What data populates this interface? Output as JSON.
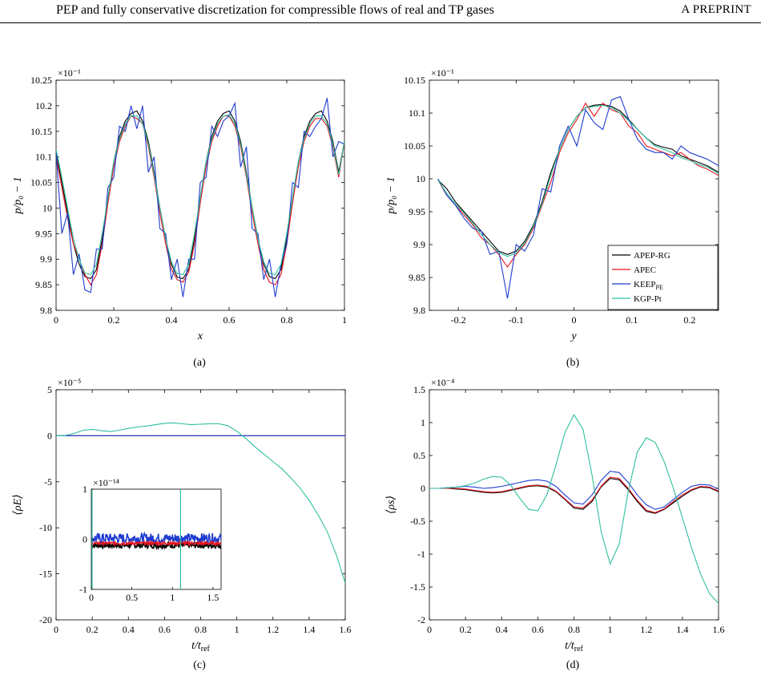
{
  "header": {
    "title": "PEP and fully conservative discretization for compressible flows of real and TP gases",
    "label": "A PREPRINT"
  },
  "legend": {
    "entries": [
      {
        "name": "APEP-RG",
        "color": "#000000"
      },
      {
        "name": "APEC",
        "color": "#e8141e"
      },
      {
        "name": "KEEP",
        "sub": "PE",
        "color": "#1f3bd0"
      },
      {
        "name": "KGP-Pt",
        "color": "#2ebfa0"
      }
    ]
  },
  "chart_data": [
    {
      "id": "a",
      "type": "line",
      "caption": "(a)",
      "xlabel": "x",
      "ylabel": "p/p₀ − 1",
      "xlim": [
        0,
        1
      ],
      "ylim": [
        9.8,
        10.25
      ],
      "exponent": "×10⁻¹",
      "xticks": [
        "0",
        "0.2",
        "0.4",
        "0.6",
        "0.8",
        "1"
      ],
      "yticks": [
        "9.8",
        "9.85",
        "9.9",
        "9.95",
        "10",
        "10.05",
        "10.1",
        "10.15",
        "10.2",
        "10.25"
      ],
      "x": [
        0,
        0.02,
        0.04,
        0.06,
        0.08,
        0.1,
        0.12,
        0.14,
        0.16,
        0.18,
        0.2,
        0.22,
        0.24,
        0.26,
        0.28,
        0.3,
        0.32,
        0.34,
        0.36,
        0.38,
        0.4,
        0.42,
        0.44,
        0.46,
        0.48,
        0.5,
        0.52,
        0.54,
        0.56,
        0.58,
        0.6,
        0.62,
        0.64,
        0.66,
        0.68,
        0.7,
        0.72,
        0.74,
        0.76,
        0.78,
        0.8,
        0.82,
        0.84,
        0.86,
        0.88,
        0.9,
        0.92,
        0.94,
        0.96,
        0.98,
        1.0
      ],
      "series": [
        {
          "name": "APEP-RG",
          "color": "#000000",
          "values": [
            10.11,
            10.05,
            9.99,
            9.93,
            9.89,
            9.866,
            9.862,
            9.88,
            9.94,
            10.02,
            10.09,
            10.14,
            10.17,
            10.185,
            10.19,
            10.17,
            10.13,
            10.07,
            10.0,
            9.94,
            9.89,
            9.865,
            9.862,
            9.88,
            9.94,
            10.02,
            10.09,
            10.14,
            10.17,
            10.185,
            10.19,
            10.17,
            10.13,
            10.07,
            10.0,
            9.94,
            9.89,
            9.866,
            9.862,
            9.88,
            9.94,
            10.02,
            10.09,
            10.14,
            10.17,
            10.185,
            10.19,
            10.17,
            10.13,
            10.07,
            10.13
          ]
        },
        {
          "name": "APEC",
          "color": "#e8141e",
          "values": [
            10.1,
            10.04,
            9.98,
            9.93,
            9.9,
            9.87,
            9.85,
            9.87,
            9.93,
            10.01,
            10.08,
            10.13,
            10.16,
            10.18,
            10.175,
            10.165,
            10.12,
            10.06,
            9.99,
            9.93,
            9.88,
            9.86,
            9.855,
            9.875,
            9.93,
            10.01,
            10.08,
            10.13,
            10.16,
            10.18,
            10.18,
            10.16,
            10.12,
            10.06,
            9.99,
            9.93,
            9.88,
            9.855,
            9.85,
            9.87,
            9.93,
            10.01,
            10.08,
            10.13,
            10.16,
            10.175,
            10.175,
            10.16,
            10.12,
            10.06,
            10.13
          ]
        },
        {
          "name": "KEEP_PE",
          "color": "#1f3bd0",
          "values": [
            10.11,
            9.95,
            9.99,
            9.87,
            9.91,
            9.84,
            9.835,
            9.92,
            9.92,
            10.04,
            10.06,
            10.16,
            10.15,
            10.2,
            10.155,
            10.2,
            10.07,
            10.1,
            9.96,
            9.95,
            9.86,
            9.9,
            9.826,
            9.9,
            9.9,
            10.05,
            10.06,
            10.16,
            10.14,
            10.17,
            10.18,
            10.205,
            10.08,
            10.12,
            9.96,
            9.95,
            9.86,
            9.9,
            9.826,
            9.89,
            9.93,
            10.05,
            10.04,
            10.15,
            10.14,
            10.16,
            10.175,
            10.215,
            10.1,
            10.13,
            10.125
          ]
        },
        {
          "name": "KGP-Pt",
          "color": "#2ebfa0",
          "values": [
            10.115,
            10.06,
            10.0,
            9.94,
            9.9,
            9.873,
            9.87,
            9.89,
            9.95,
            10.02,
            10.09,
            10.135,
            10.165,
            10.18,
            10.18,
            10.165,
            10.125,
            10.065,
            10.0,
            9.94,
            9.895,
            9.872,
            9.87,
            9.89,
            9.95,
            10.02,
            10.09,
            10.135,
            10.165,
            10.18,
            10.182,
            10.165,
            10.125,
            10.065,
            10.0,
            9.94,
            9.895,
            9.872,
            9.87,
            9.89,
            9.95,
            10.02,
            10.09,
            10.135,
            10.165,
            10.18,
            10.18,
            10.165,
            10.125,
            10.065,
            10.13
          ]
        }
      ]
    },
    {
      "id": "b",
      "type": "line",
      "caption": "(b)",
      "xlabel": "y",
      "ylabel": "p/p₀ − 1",
      "xlim": [
        -0.25,
        0.25
      ],
      "ylim": [
        9.8,
        10.15
      ],
      "exponent": "×10⁻¹",
      "xticks": [
        "-0.2",
        "-0.1",
        "0",
        "0.1",
        "0.2"
      ],
      "xtick_values": [
        -0.2,
        -0.1,
        0,
        0.1,
        0.2
      ],
      "yticks": [
        "9.8",
        "9.85",
        "9.9",
        "9.95",
        "10",
        "10.05",
        "10.1",
        "10.15"
      ],
      "x": [
        -0.235,
        -0.22,
        -0.205,
        -0.19,
        -0.175,
        -0.16,
        -0.145,
        -0.13,
        -0.115,
        -0.1,
        -0.085,
        -0.07,
        -0.055,
        -0.04,
        -0.025,
        -0.01,
        0.005,
        0.02,
        0.035,
        0.05,
        0.065,
        0.08,
        0.095,
        0.11,
        0.125,
        0.14,
        0.155,
        0.17,
        0.185,
        0.2,
        0.215,
        0.23,
        0.25
      ],
      "series": [
        {
          "name": "APEP-RG",
          "color": "#000000",
          "values": [
            9.998,
            9.985,
            9.965,
            9.95,
            9.935,
            9.92,
            9.905,
            9.89,
            9.885,
            9.89,
            9.905,
            9.93,
            9.965,
            10.01,
            10.045,
            10.075,
            10.095,
            10.108,
            10.112,
            10.113,
            10.11,
            10.103,
            10.09,
            10.075,
            10.062,
            10.052,
            10.048,
            10.045,
            10.035,
            10.03,
            10.025,
            10.02,
            10.01
          ]
        },
        {
          "name": "APEC",
          "color": "#e8141e",
          "values": [
            9.998,
            9.975,
            9.96,
            9.945,
            9.93,
            9.91,
            9.9,
            9.885,
            9.866,
            9.885,
            9.9,
            9.925,
            9.96,
            9.995,
            10.04,
            10.07,
            10.09,
            10.115,
            10.095,
            10.115,
            10.105,
            10.1,
            10.08,
            10.07,
            10.05,
            10.045,
            10.04,
            10.035,
            10.04,
            10.03,
            10.02,
            10.015,
            10.005
          ]
        },
        {
          "name": "KEEP_PE",
          "color": "#1f3bd0",
          "values": [
            10.0,
            9.975,
            9.96,
            9.94,
            9.925,
            9.92,
            9.885,
            9.89,
            9.818,
            9.9,
            9.89,
            9.915,
            9.985,
            9.98,
            10.05,
            10.08,
            10.05,
            10.105,
            10.085,
            10.075,
            10.12,
            10.125,
            10.09,
            10.06,
            10.045,
            10.04,
            10.04,
            10.03,
            10.05,
            10.04,
            10.035,
            10.03,
            10.02
          ]
        },
        {
          "name": "KGP-Pt",
          "color": "#2ebfa0",
          "values": [
            9.998,
            9.978,
            9.962,
            9.948,
            9.932,
            9.915,
            9.9,
            9.888,
            9.882,
            9.887,
            9.902,
            9.928,
            9.962,
            10.005,
            10.045,
            10.075,
            10.095,
            10.108,
            10.11,
            10.112,
            10.108,
            10.1,
            10.088,
            10.075,
            10.062,
            10.05,
            10.045,
            10.04,
            10.032,
            10.028,
            10.022,
            10.018,
            10.008
          ]
        }
      ]
    },
    {
      "id": "c",
      "type": "line",
      "caption": "(c)",
      "xlabel": "t/t_ref",
      "ylabel": "⟨ρE⟩",
      "xlim": [
        0,
        1.6
      ],
      "ylim": [
        -20,
        5
      ],
      "exponent": "×10⁻⁵",
      "xticks": [
        "0",
        "0.2",
        "0.4",
        "0.6",
        "0.8",
        "1",
        "1.2",
        "1.4",
        "1.6"
      ],
      "yticks": [
        "-20",
        "-15",
        "-10",
        "-5",
        "0",
        "5"
      ],
      "x": [
        0,
        0.05,
        0.1,
        0.15,
        0.2,
        0.25,
        0.3,
        0.35,
        0.4,
        0.45,
        0.5,
        0.55,
        0.6,
        0.65,
        0.7,
        0.75,
        0.8,
        0.85,
        0.9,
        0.95,
        1.0,
        1.05,
        1.1,
        1.15,
        1.2,
        1.25,
        1.3,
        1.35,
        1.4,
        1.45,
        1.5,
        1.55,
        1.6
      ],
      "series": [
        {
          "name": "APEP-RG",
          "color": "#000000",
          "values": [
            0,
            0,
            0,
            0,
            0,
            0,
            0,
            0,
            0,
            0,
            0,
            0,
            0,
            0,
            0,
            0,
            0,
            0,
            0,
            0,
            0,
            0,
            0,
            0,
            0,
            0,
            0,
            0,
            0,
            0,
            0,
            0,
            0
          ]
        },
        {
          "name": "APEC",
          "color": "#e8141e",
          "values": [
            0,
            0,
            0,
            0,
            0,
            0,
            0,
            0,
            0,
            0,
            0,
            0,
            0,
            0,
            0,
            0,
            0,
            0,
            0,
            0,
            0,
            0,
            0,
            0,
            0,
            0,
            0,
            0,
            0,
            0,
            0,
            0,
            0
          ]
        },
        {
          "name": "KEEP_PE",
          "color": "#1f3bd0",
          "values": [
            0,
            0,
            0,
            0,
            0,
            0,
            0,
            0,
            0,
            0,
            0,
            0,
            0,
            0,
            0,
            0,
            0,
            0,
            0,
            0,
            0,
            0,
            0,
            0,
            0,
            0,
            0,
            0,
            0,
            0,
            0,
            0,
            0
          ]
        },
        {
          "name": "KGP-Pt",
          "color": "#2ebfa0",
          "values": [
            0,
            0.02,
            0.25,
            0.6,
            0.7,
            0.55,
            0.45,
            0.6,
            0.8,
            0.95,
            1.05,
            1.2,
            1.35,
            1.4,
            1.3,
            1.2,
            1.25,
            1.3,
            1.3,
            1.1,
            0.5,
            -0.3,
            -1.2,
            -2.0,
            -2.8,
            -3.6,
            -4.6,
            -5.7,
            -7.0,
            -8.6,
            -10.4,
            -12.9,
            -16.0
          ]
        }
      ],
      "inset": {
        "xlim": [
          0,
          1.6
        ],
        "ylim": [
          -1,
          1
        ],
        "exponent": "×10⁻¹⁴",
        "xticks": [
          "0",
          "0.5",
          "1",
          "1.5"
        ],
        "yticks": [
          "-1",
          "0",
          "1"
        ],
        "bands": [
          {
            "name": "APEP-RG",
            "color": "#000000",
            "center": -0.12,
            "amplitude": 0.06
          },
          {
            "name": "KEEP_PE",
            "color": "#1f3bd0",
            "center": 0.02,
            "amplitude": 0.1
          },
          {
            "name": "APEC",
            "color": "#e8141e",
            "center": -0.08,
            "amplitude": 0.03
          }
        ],
        "spikes": [
          {
            "name": "KGP-Pt",
            "color": "#2ebfa0",
            "x": 0.0
          },
          {
            "name": "KGP-Pt",
            "color": "#2ebfa0",
            "x": 1.1
          }
        ]
      }
    },
    {
      "id": "d",
      "type": "line",
      "caption": "(d)",
      "xlabel": "t/t_ref",
      "ylabel": "⟨ρs⟩",
      "xlim": [
        0,
        1.6
      ],
      "ylim": [
        -2,
        1.5
      ],
      "exponent": "×10⁻⁴",
      "xticks": [
        "0",
        "0.2",
        "0.4",
        "0.6",
        "0.8",
        "1",
        "1.2",
        "1.4",
        "1.6"
      ],
      "yticks": [
        "-2",
        "-1.5",
        "-1",
        "-0.5",
        "0",
        "0.5",
        "1",
        "1.5"
      ],
      "x": [
        0,
        0.05,
        0.1,
        0.15,
        0.2,
        0.25,
        0.3,
        0.35,
        0.4,
        0.45,
        0.5,
        0.55,
        0.6,
        0.65,
        0.7,
        0.75,
        0.8,
        0.85,
        0.9,
        0.95,
        1.0,
        1.05,
        1.1,
        1.15,
        1.2,
        1.25,
        1.3,
        1.35,
        1.4,
        1.45,
        1.5,
        1.55,
        1.6
      ],
      "series": [
        {
          "name": "APEP-RG",
          "color": "#000000",
          "values": [
            0,
            0,
            0,
            -0.01,
            -0.02,
            -0.04,
            -0.06,
            -0.07,
            -0.06,
            -0.03,
            0.0,
            0.03,
            0.04,
            0.02,
            -0.05,
            -0.17,
            -0.3,
            -0.32,
            -0.2,
            0.02,
            0.15,
            0.13,
            -0.02,
            -0.2,
            -0.35,
            -0.38,
            -0.32,
            -0.22,
            -0.12,
            -0.03,
            0.02,
            0.01,
            -0.05
          ]
        },
        {
          "name": "APEC",
          "color": "#e8141e",
          "values": [
            0,
            0,
            0,
            0,
            -0.01,
            -0.03,
            -0.05,
            -0.06,
            -0.05,
            -0.02,
            0.01,
            0.04,
            0.05,
            0.03,
            -0.04,
            -0.16,
            -0.28,
            -0.3,
            -0.18,
            0.03,
            0.17,
            0.15,
            0.0,
            -0.18,
            -0.33,
            -0.37,
            -0.31,
            -0.2,
            -0.1,
            -0.02,
            0.03,
            0.02,
            -0.04
          ]
        },
        {
          "name": "KEEP_PE",
          "color": "#1f3bd0",
          "values": [
            0,
            0,
            0.01,
            0.02,
            0.03,
            0.02,
            0.0,
            0.01,
            0.03,
            0.06,
            0.09,
            0.12,
            0.13,
            0.11,
            0.03,
            -0.1,
            -0.22,
            -0.24,
            -0.1,
            0.12,
            0.26,
            0.24,
            0.09,
            -0.1,
            -0.25,
            -0.32,
            -0.28,
            -0.17,
            -0.06,
            0.03,
            0.06,
            0.05,
            -0.01
          ]
        },
        {
          "name": "KGP-Pt",
          "color": "#2ebfa0",
          "values": [
            0,
            0,
            0.01,
            0.02,
            0.04,
            0.08,
            0.14,
            0.18,
            0.17,
            0.05,
            -0.15,
            -0.32,
            -0.34,
            -0.1,
            0.35,
            0.85,
            1.12,
            0.9,
            0.2,
            -0.65,
            -1.15,
            -0.85,
            -0.05,
            0.55,
            0.77,
            0.7,
            0.4,
            0.0,
            -0.45,
            -0.9,
            -1.3,
            -1.6,
            -1.75
          ]
        }
      ]
    }
  ]
}
